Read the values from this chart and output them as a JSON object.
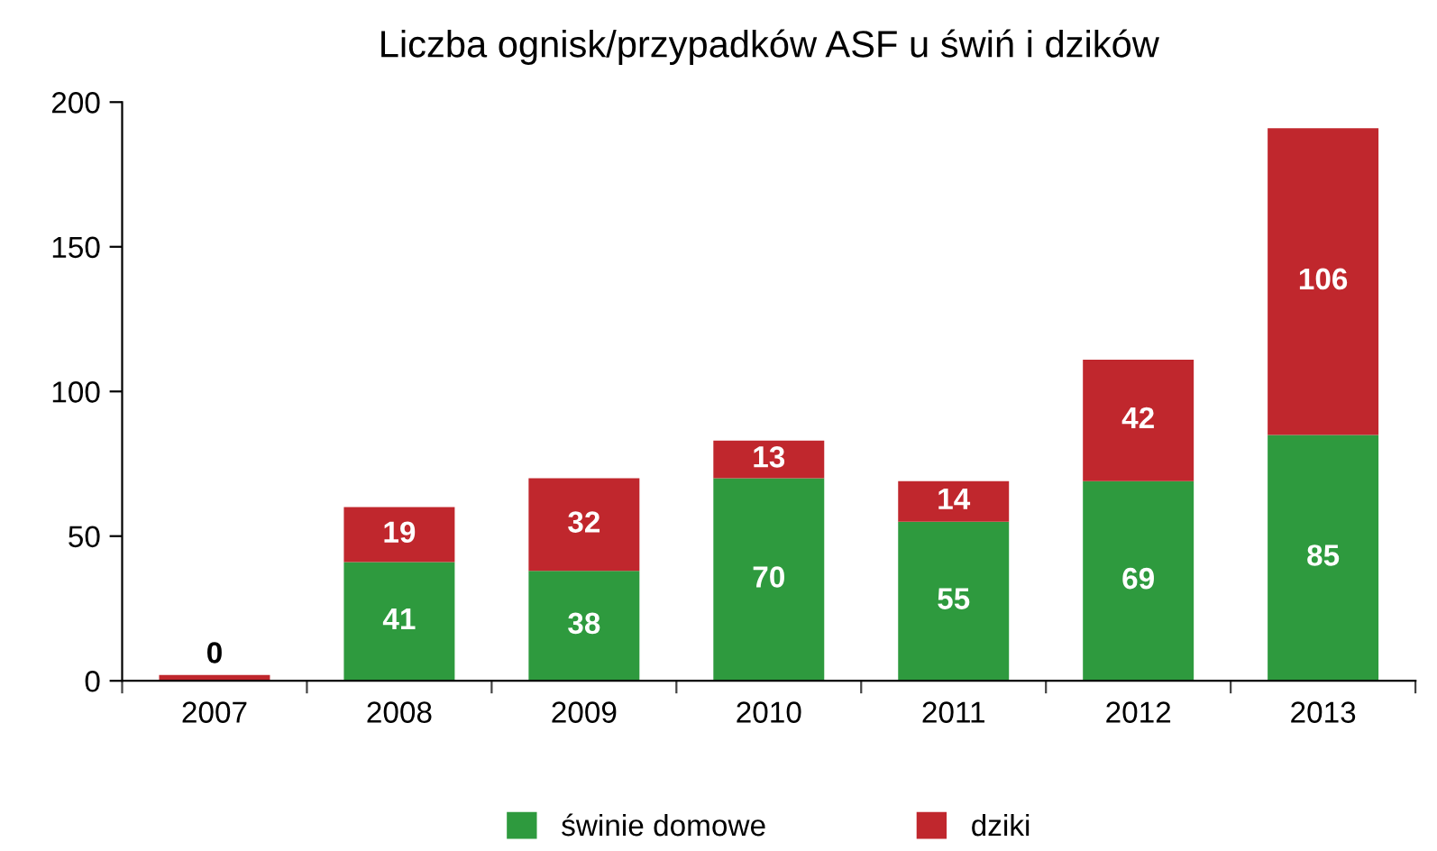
{
  "chart_data": {
    "type": "bar",
    "title": "Liczba ognisk/przypadków ASF u świń i dzików",
    "stacked": true,
    "categories": [
      "2007",
      "2008",
      "2009",
      "2010",
      "2011",
      "2012",
      "2013"
    ],
    "series": [
      {
        "name": "świnie domowe",
        "color": "#2e9a3e",
        "values": [
          0,
          41,
          38,
          70,
          55,
          69,
          85
        ],
        "value_labels": [
          "0",
          "41",
          "38",
          "70",
          "55",
          "69",
          "85"
        ]
      },
      {
        "name": "dziki",
        "color": "#c0272d",
        "values": [
          2,
          19,
          32,
          13,
          14,
          42,
          106
        ],
        "value_labels": [
          null,
          "19",
          "32",
          "13",
          "14",
          "42",
          "106"
        ]
      }
    ],
    "ylim": [
      0,
      200
    ],
    "yticks": [
      0,
      50,
      100,
      150,
      200
    ],
    "grid": false,
    "legend": "bottom"
  }
}
